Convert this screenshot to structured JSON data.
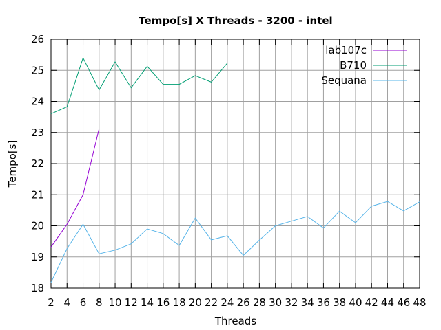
{
  "chart_data": {
    "type": "line",
    "title": "Tempo[s] X Threads - 3200 - intel",
    "xlabel": "Threads",
    "ylabel": "Tempo[s]",
    "xlim": [
      2,
      48
    ],
    "ylim": [
      18,
      26
    ],
    "xticks": [
      2,
      4,
      6,
      8,
      10,
      12,
      14,
      16,
      18,
      20,
      22,
      24,
      26,
      28,
      30,
      32,
      34,
      36,
      38,
      40,
      42,
      44,
      46,
      48
    ],
    "yticks": [
      18,
      19,
      20,
      21,
      22,
      23,
      24,
      25,
      26
    ],
    "grid": true,
    "legend_position": "top-right",
    "series": [
      {
        "name": "lab107c",
        "color": "#9400d3",
        "x": [
          2,
          4,
          6,
          8
        ],
        "y": [
          19.32,
          20.05,
          21.0,
          23.12
        ]
      },
      {
        "name": "B710",
        "color": "#009e73",
        "x": [
          2,
          4,
          6,
          8,
          10,
          12,
          14,
          16,
          18,
          20,
          22,
          24
        ],
        "y": [
          23.6,
          23.83,
          25.4,
          24.37,
          25.27,
          24.44,
          25.13,
          24.55,
          24.55,
          24.83,
          24.62,
          25.23
        ]
      },
      {
        "name": "Sequana",
        "color": "#56b4e9",
        "x": [
          2,
          4,
          6,
          8,
          10,
          12,
          14,
          16,
          18,
          20,
          22,
          24,
          26,
          28,
          30,
          32,
          34,
          36,
          38,
          40,
          42,
          44,
          46,
          48
        ],
        "y": [
          18.18,
          19.27,
          20.05,
          19.1,
          19.22,
          19.42,
          19.9,
          19.75,
          19.37,
          20.25,
          19.55,
          19.68,
          19.05,
          19.54,
          20.0,
          20.15,
          20.3,
          19.93,
          20.47,
          20.1,
          20.63,
          20.78,
          20.48,
          20.77
        ]
      }
    ]
  }
}
